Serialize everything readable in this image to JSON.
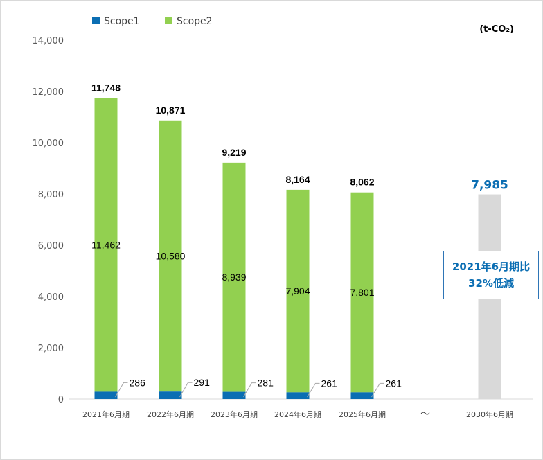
{
  "chart_data": {
    "type": "bar",
    "stacked": true,
    "unit": "(t-CO₂)",
    "categories": [
      "2021年6月期",
      "2022年6月期",
      "2023年6月期",
      "2024年6月期",
      "2025年6月期",
      "〜",
      "2030年6月期"
    ],
    "series": [
      {
        "name": "Scope1",
        "color": "#0b6eb3",
        "values": [
          286,
          291,
          281,
          261,
          261,
          null,
          null
        ]
      },
      {
        "name": "Scope2",
        "color": "#92d050",
        "values": [
          11462,
          10580,
          8939,
          7904,
          7801,
          null,
          null
        ]
      }
    ],
    "totals": [
      11748,
      10871,
      9219,
      8164,
      8062,
      null,
      null
    ],
    "target": {
      "category": "2030年6月期",
      "value": 7985,
      "label": "7,985",
      "color": "#d9d9d9",
      "label_color": "#0b6eb3"
    },
    "ylim": [
      0,
      14000
    ],
    "yticks": [
      0,
      2000,
      4000,
      6000,
      8000,
      10000,
      12000,
      14000
    ],
    "grid": false,
    "legend": "top-left"
  },
  "callout": {
    "line1": "2021年6月期比",
    "line2": "32%低減"
  }
}
